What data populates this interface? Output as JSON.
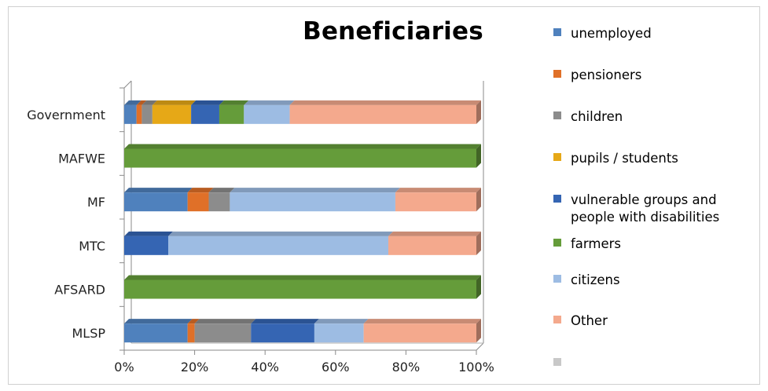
{
  "chart_data": {
    "type": "bar",
    "orientation": "horizontal",
    "stacking": "percent",
    "title": "Beneficiaries",
    "categories": [
      "Government",
      "MAFWE",
      "MF",
      "MTC",
      "AFSARD",
      "MLSP"
    ],
    "x_ticks": [
      "0%",
      "20%",
      "40%",
      "60%",
      "80%",
      "100%"
    ],
    "xlim": [
      0,
      100
    ],
    "grid": false,
    "legend_position": "right",
    "series": [
      {
        "name": "unemployed",
        "color": "#4f81bd",
        "values": [
          3.5,
          0,
          18,
          0,
          0,
          18
        ]
      },
      {
        "name": "pensioners",
        "color": "#e07028",
        "values": [
          1.5,
          0,
          6,
          0,
          0,
          2
        ]
      },
      {
        "name": "children",
        "color": "#8c8c8c",
        "values": [
          3,
          0,
          6,
          0,
          0,
          16
        ]
      },
      {
        "name": "pupils / students",
        "color": "#e6a817",
        "values": [
          11,
          0,
          0,
          0,
          0,
          0
        ]
      },
      {
        "name": "vulnerable groups and people with disabilities",
        "color": "#3565b3",
        "values": [
          8,
          0,
          0,
          12.5,
          0,
          18
        ]
      },
      {
        "name": "farmers",
        "color": "#659c3a",
        "values": [
          7,
          100,
          0,
          0,
          100,
          0
        ]
      },
      {
        "name": "citizens",
        "color": "#9dbce3",
        "values": [
          13,
          0,
          47,
          62.5,
          0,
          14
        ]
      },
      {
        "name": "Other",
        "color": "#f4a98d",
        "values": [
          53,
          0,
          23,
          25,
          0,
          32
        ]
      },
      {
        "name": "",
        "color": "#c8c8c8",
        "values": [
          0,
          0,
          0,
          0,
          0,
          0
        ]
      }
    ]
  }
}
